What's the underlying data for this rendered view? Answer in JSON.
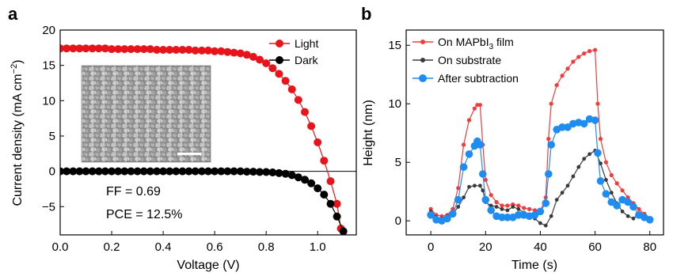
{
  "panel_a": {
    "letter": "a",
    "annotations": {
      "ff": "FF = 0.69",
      "pce": "PCE = 12.5%"
    },
    "inset": {
      "description_name": "sem-micrograph-inset",
      "scalebar_color": "#ffffff"
    }
  },
  "panel_b": {
    "letter": "b"
  },
  "chart_data": [
    {
      "type": "line",
      "xlabel": "Voltage (V)",
      "ylabel_parts": [
        "Current density (mA cm",
        "−2",
        ")"
      ],
      "xlim": [
        0.0,
        1.15
      ],
      "ylim": [
        -9,
        20
      ],
      "xticks": [
        0.0,
        0.2,
        0.4,
        0.6,
        0.8,
        1.0
      ],
      "xtick_labels": [
        "0.0",
        "0.2",
        "0.4",
        "0.6",
        "0.8",
        "1.0"
      ],
      "yticks": [
        -5,
        0,
        5,
        10,
        15,
        20
      ],
      "ytick_labels": [
        "−5",
        "0",
        "5",
        "10",
        "15",
        "20"
      ],
      "legend": "top-right",
      "series": [
        {
          "name": "Light",
          "color": "#e8141c",
          "x": [
            0.0,
            0.025,
            0.05,
            0.075,
            0.1,
            0.125,
            0.15,
            0.175,
            0.2,
            0.225,
            0.25,
            0.275,
            0.3,
            0.325,
            0.35,
            0.375,
            0.4,
            0.425,
            0.45,
            0.475,
            0.5,
            0.525,
            0.55,
            0.575,
            0.6,
            0.625,
            0.65,
            0.675,
            0.7,
            0.725,
            0.75,
            0.775,
            0.8,
            0.825,
            0.85,
            0.875,
            0.9,
            0.925,
            0.95,
            0.975,
            1.0,
            1.025,
            1.05,
            1.075,
            1.09
          ],
          "y": [
            17.4,
            17.4,
            17.4,
            17.4,
            17.4,
            17.4,
            17.4,
            17.4,
            17.3,
            17.3,
            17.3,
            17.3,
            17.3,
            17.3,
            17.3,
            17.2,
            17.2,
            17.2,
            17.2,
            17.2,
            17.2,
            17.1,
            17.1,
            17.1,
            17.0,
            17.0,
            16.9,
            16.8,
            16.7,
            16.5,
            16.2,
            15.8,
            15.3,
            14.6,
            13.8,
            12.8,
            11.6,
            10.1,
            8.4,
            6.4,
            4.1,
            1.5,
            -1.4,
            -4.6,
            -8.1
          ]
        },
        {
          "name": "Dark",
          "color": "#000000",
          "x": [
            0.0,
            0.025,
            0.05,
            0.075,
            0.1,
            0.125,
            0.15,
            0.175,
            0.2,
            0.225,
            0.25,
            0.275,
            0.3,
            0.325,
            0.35,
            0.375,
            0.4,
            0.425,
            0.45,
            0.475,
            0.5,
            0.525,
            0.55,
            0.575,
            0.6,
            0.625,
            0.65,
            0.675,
            0.7,
            0.725,
            0.75,
            0.775,
            0.8,
            0.825,
            0.85,
            0.875,
            0.9,
            0.925,
            0.95,
            0.975,
            1.0,
            1.025,
            1.05,
            1.075,
            1.1
          ],
          "y": [
            0.0,
            0.0,
            0.0,
            0.0,
            0.0,
            0.0,
            0.0,
            0.0,
            0.0,
            0.0,
            0.0,
            0.0,
            0.0,
            0.0,
            0.0,
            0.0,
            0.0,
            0.0,
            0.0,
            0.0,
            0.0,
            0.0,
            0.0,
            0.0,
            0.0,
            0.0,
            0.0,
            0.0,
            0.0,
            -0.05,
            -0.05,
            -0.1,
            -0.1,
            -0.15,
            -0.25,
            -0.35,
            -0.55,
            -0.85,
            -1.2,
            -1.7,
            -2.4,
            -3.3,
            -4.6,
            -6.4,
            -8.5
          ]
        }
      ]
    },
    {
      "type": "line",
      "xlabel": "Time (s)",
      "ylabel": "Height (nm)",
      "xlim": [
        -9,
        85
      ],
      "ylim": [
        -1.2,
        16.3
      ],
      "xticks": [
        0,
        20,
        40,
        60,
        80
      ],
      "xtick_labels": [
        "0",
        "20",
        "40",
        "60",
        "80"
      ],
      "yticks": [
        0,
        5,
        10,
        15
      ],
      "ytick_labels": [
        "0",
        "5",
        "10",
        "15"
      ],
      "legend": "top-left",
      "series": [
        {
          "name_parts": [
            "On MAPbI",
            "3",
            " film"
          ],
          "color": "#f03c3c",
          "x": [
            0,
            2,
            4,
            6,
            8,
            10,
            12,
            14,
            16,
            17,
            18,
            19,
            20,
            22,
            24,
            26,
            28,
            30,
            32,
            34,
            36,
            38,
            40,
            42,
            43,
            44,
            46,
            48,
            50,
            52,
            54,
            56,
            58,
            60,
            61,
            62,
            64,
            66,
            68,
            70,
            72,
            74,
            76,
            78,
            80
          ],
          "y": [
            1.0,
            0.5,
            0.4,
            0.5,
            1.0,
            2.8,
            6.5,
            8.6,
            9.6,
            9.9,
            9.9,
            6.5,
            3.5,
            2.2,
            1.6,
            1.3,
            1.3,
            1.4,
            1.3,
            1.1,
            1.0,
            0.9,
            0.8,
            2.0,
            7.0,
            10.0,
            11.6,
            12.4,
            13.0,
            13.6,
            14.0,
            14.3,
            14.5,
            14.6,
            10.0,
            7.0,
            5.0,
            3.9,
            3.2,
            2.6,
            2.0,
            1.5,
            1.0,
            0.6,
            0.2
          ]
        },
        {
          "name": "On substrate",
          "color": "#3a3a3a",
          "x": [
            0,
            2,
            4,
            6,
            8,
            10,
            12,
            14,
            16,
            18,
            19,
            20,
            22,
            24,
            26,
            28,
            30,
            32,
            34,
            36,
            38,
            40,
            42,
            44,
            46,
            48,
            50,
            52,
            54,
            56,
            58,
            60,
            62,
            64,
            66,
            68,
            70,
            72,
            74,
            76,
            78,
            80
          ],
          "y": [
            0.8,
            0.3,
            0.2,
            0.4,
            0.6,
            1.2,
            2.0,
            2.9,
            3.0,
            3.0,
            2.6,
            1.6,
            1.3,
            1.2,
            1.0,
            0.9,
            1.2,
            1.0,
            0.7,
            0.5,
            0.2,
            -0.2,
            -0.4,
            0.4,
            1.8,
            2.4,
            3.0,
            3.8,
            4.6,
            5.3,
            5.7,
            6.0,
            4.9,
            3.5,
            2.4,
            1.5,
            0.8,
            0.4,
            0.2,
            0.6,
            0.4,
            0.1
          ]
        },
        {
          "name": "After subtraction",
          "color": "#1e8cf0",
          "x": [
            0,
            2,
            4,
            6,
            8,
            10,
            12,
            14,
            16,
            17,
            18,
            19,
            20,
            22,
            24,
            26,
            28,
            30,
            32,
            34,
            36,
            38,
            40,
            42,
            43,
            44,
            46,
            48,
            50,
            52,
            54,
            56,
            58,
            60,
            61,
            62,
            64,
            66,
            68,
            70,
            72,
            74,
            76,
            78,
            80
          ],
          "y": [
            0.5,
            0.1,
            0.0,
            0.2,
            0.6,
            1.8,
            4.6,
            5.7,
            6.4,
            6.8,
            6.5,
            4.0,
            1.8,
            0.9,
            0.4,
            0.3,
            0.3,
            0.3,
            0.5,
            0.5,
            0.4,
            0.5,
            0.8,
            1.5,
            4.0,
            6.5,
            7.8,
            8.0,
            8.0,
            8.3,
            8.4,
            8.3,
            8.7,
            8.6,
            5.8,
            3.4,
            2.3,
            1.6,
            1.3,
            1.8,
            1.6,
            1.2,
            0.5,
            0.3,
            0.1
          ]
        }
      ]
    }
  ]
}
